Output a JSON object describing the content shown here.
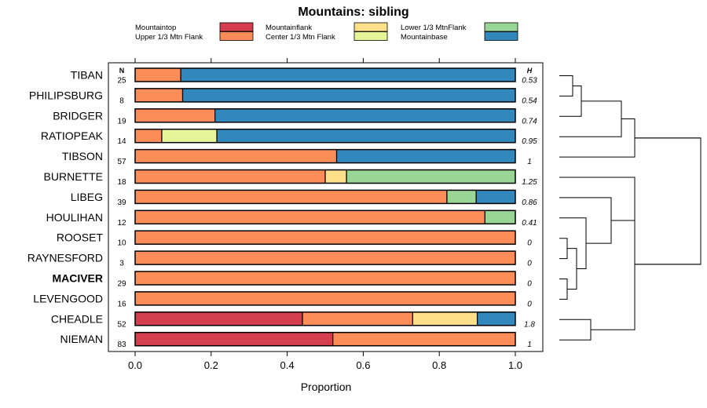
{
  "chart_data": {
    "type": "bar",
    "orientation": "horizontal",
    "stacked": true,
    "title": "Mountains: sibling",
    "xlabel": "Proportion",
    "ylabel": "",
    "xlim": [
      0,
      1
    ],
    "x_ticks": [
      "0.0",
      "0.2",
      "0.4",
      "0.6",
      "0.8",
      "1.0"
    ],
    "n_header": "N",
    "h_header": "H",
    "highlight_category": "MACIVER",
    "legend_position": "top",
    "legend": [
      {
        "name": "Mountaintop",
        "color": "#d53e4f"
      },
      {
        "name": "Upper 1/3 Mtn Flank",
        "color": "#fc8d59"
      },
      {
        "name": "Mountainflank",
        "color": "#fee08b"
      },
      {
        "name": "Center 1/3 Mtn Flank",
        "color": "#e6f598"
      },
      {
        "name": "Lower 1/3 MtnFlank",
        "color": "#99d594"
      },
      {
        "name": "Mountainbase",
        "color": "#3288bd"
      }
    ],
    "categories": [
      "TIBAN",
      "PHILIPSBURG",
      "BRIDGER",
      "RATIOPEAK",
      "TIBSON",
      "BURNETTE",
      "LIBEG",
      "HOULIHAN",
      "ROOSET",
      "RAYNESFORD",
      "MACIVER",
      "LEVENGOOD",
      "CHEADLE",
      "NIEMAN"
    ],
    "n_values": [
      "25",
      "8",
      "19",
      "14",
      "57",
      "18",
      "39",
      "12",
      "10",
      "3",
      "29",
      "16",
      "52",
      "83"
    ],
    "h_values": [
      "0.53",
      "0.54",
      "0.74",
      "0.95",
      "1",
      "1.25",
      "0.86",
      "0.41",
      "0",
      "0",
      "0",
      "0",
      "1.8",
      "1"
    ],
    "series": [
      {
        "name": "Mountaintop",
        "values": [
          0,
          0,
          0,
          0,
          0,
          0,
          0,
          0,
          0,
          0,
          0,
          0,
          0.44,
          0.52
        ]
      },
      {
        "name": "Upper 1/3 Mtn Flank",
        "values": [
          0.12,
          0.125,
          0.21,
          0.07,
          0.53,
          0.5,
          0.82,
          0.92,
          1,
          1,
          1,
          1,
          0.29,
          0.48
        ]
      },
      {
        "name": "Mountainflank",
        "values": [
          0,
          0,
          0,
          0,
          0,
          0.056,
          0,
          0,
          0,
          0,
          0,
          0,
          0.17,
          0
        ]
      },
      {
        "name": "Center 1/3 Mtn Flank",
        "values": [
          0,
          0,
          0,
          0.145,
          0,
          0,
          0,
          0,
          0,
          0,
          0,
          0,
          0,
          0
        ]
      },
      {
        "name": "Lower 1/3 MtnFlank",
        "values": [
          0,
          0,
          0,
          0,
          0,
          0.444,
          0.077,
          0.08,
          0,
          0,
          0,
          0,
          0,
          0
        ]
      },
      {
        "name": "Mountainbase",
        "values": [
          0.88,
          0.875,
          0.79,
          0.785,
          0.47,
          0,
          0.103,
          0,
          0,
          0,
          0,
          0,
          0.1,
          0
        ]
      }
    ],
    "dendrogram": {
      "type": "hierarchical-clustering",
      "merges": [
        [
          "TIBAN",
          "PHILIPSBURG"
        ],
        [
          "TIBAN+PHILIPSBURG",
          "BRIDGER"
        ],
        [
          "upper-a",
          "RATIOPEAK"
        ],
        [
          "upper-b",
          "TIBSON"
        ],
        [
          "ROOSET",
          "RAYNESFORD"
        ],
        [
          "MACIVER",
          "LEVENGOOD"
        ],
        [
          "zero-a",
          "zero-b"
        ],
        [
          "zeros",
          "HOULIHAN"
        ],
        [
          "zeros+HOULIHAN",
          "LIBEG"
        ],
        [
          "BURNETTE",
          "middle"
        ],
        [
          "CHEADLE",
          "NIEMAN"
        ],
        [
          "middle-all",
          "CHEADLE+NIEMAN"
        ],
        [
          "upper-all",
          "lower-all"
        ]
      ]
    }
  }
}
